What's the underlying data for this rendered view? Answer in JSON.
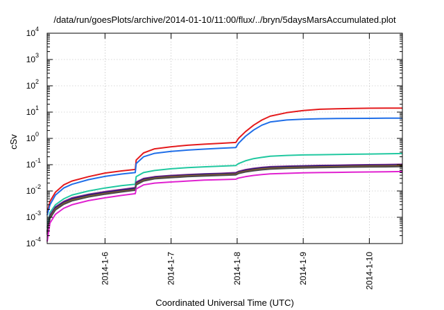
{
  "chart_data": {
    "type": "line",
    "title": "/data/run/goesPlots/archive/2014-01-10/11:00/flux/../bryn/5daysMarsAccumulated.plot",
    "xlabel": "Coordinated Universal Time (UTC)",
    "ylabel": "cSv",
    "y_scale": "log",
    "ylim_exponents": [
      -4,
      4
    ],
    "y_tick_base": "10",
    "y_tick_exponents": [
      "-4",
      "-3",
      "-2",
      "-1",
      "0",
      "1",
      "2",
      "3",
      "4"
    ],
    "xlim": [
      "2014-01-05 03:00",
      "2014-01-10 12:00"
    ],
    "x_ticks": [
      "2014-1-6",
      "2014-1-7",
      "2014-1-8",
      "2014-1-9",
      "2014-1-10"
    ],
    "grid": true,
    "legend": "none",
    "series": [
      {
        "color": "#e41a1c",
        "x": [
          "2014-01-05 03:00",
          "2014-01-05 04:00",
          "2014-01-05 06:00",
          "2014-01-05 09:00",
          "2014-01-05 12:00",
          "2014-01-05 18:00",
          "2014-01-06 00:00",
          "2014-01-06 06:00",
          "2014-01-06 11:00",
          "2014-01-06 11:20",
          "2014-01-06 14:00",
          "2014-01-06 18:00",
          "2014-01-07 00:00",
          "2014-01-07 06:00",
          "2014-01-07 12:00",
          "2014-01-07 18:00",
          "2014-01-07 23:30",
          "2014-01-08 00:30",
          "2014-01-08 03:00",
          "2014-01-08 06:00",
          "2014-01-08 09:00",
          "2014-01-08 12:00",
          "2014-01-08 18:00",
          "2014-01-09 00:00",
          "2014-01-09 06:00",
          "2014-01-09 12:00",
          "2014-01-09 18:00",
          "2014-01-10 00:00",
          "2014-01-10 06:00",
          "2014-01-10 12:00"
        ],
        "values": [
          0.0015,
          0.004,
          0.009,
          0.017,
          0.024,
          0.035,
          0.048,
          0.058,
          0.066,
          0.15,
          0.28,
          0.4,
          0.48,
          0.55,
          0.6,
          0.65,
          0.7,
          1.0,
          1.8,
          3.2,
          5.0,
          7.0,
          9.5,
          11.5,
          12.8,
          13.4,
          13.8,
          14.0,
          14.1,
          14.2
        ]
      },
      {
        "color": "#1f6ee8",
        "x": [
          "2014-01-05 03:00",
          "2014-01-05 04:00",
          "2014-01-05 06:00",
          "2014-01-05 09:00",
          "2014-01-05 12:00",
          "2014-01-05 18:00",
          "2014-01-06 00:00",
          "2014-01-06 06:00",
          "2014-01-06 11:00",
          "2014-01-06 11:20",
          "2014-01-06 14:00",
          "2014-01-06 18:00",
          "2014-01-07 00:00",
          "2014-01-07 06:00",
          "2014-01-07 12:00",
          "2014-01-07 18:00",
          "2014-01-07 23:30",
          "2014-01-08 00:30",
          "2014-01-08 03:00",
          "2014-01-08 06:00",
          "2014-01-08 09:00",
          "2014-01-08 12:00",
          "2014-01-08 18:00",
          "2014-01-09 00:00",
          "2014-01-09 06:00",
          "2014-01-09 12:00",
          "2014-01-09 18:00",
          "2014-01-10 00:00",
          "2014-01-10 06:00",
          "2014-01-10 12:00"
        ],
        "values": [
          0.0012,
          0.003,
          0.007,
          0.013,
          0.018,
          0.027,
          0.036,
          0.044,
          0.05,
          0.11,
          0.2,
          0.27,
          0.32,
          0.36,
          0.39,
          0.42,
          0.45,
          0.65,
          1.2,
          2.1,
          3.2,
          4.2,
          5.0,
          5.4,
          5.6,
          5.7,
          5.75,
          5.8,
          5.85,
          5.9
        ]
      },
      {
        "color": "#20c8a0",
        "x": [
          "2014-01-05 03:00",
          "2014-01-05 04:00",
          "2014-01-05 06:00",
          "2014-01-05 09:00",
          "2014-01-05 12:00",
          "2014-01-05 18:00",
          "2014-01-06 00:00",
          "2014-01-06 06:00",
          "2014-01-06 11:00",
          "2014-01-06 11:20",
          "2014-01-06 14:00",
          "2014-01-06 18:00",
          "2014-01-07 00:00",
          "2014-01-07 06:00",
          "2014-01-07 12:00",
          "2014-01-07 18:00",
          "2014-01-07 23:30",
          "2014-01-08 00:30",
          "2014-01-08 03:00",
          "2014-01-08 06:00",
          "2014-01-08 09:00",
          "2014-01-08 12:00",
          "2014-01-08 18:00",
          "2014-01-09 00:00",
          "2014-01-09 06:00",
          "2014-01-09 12:00",
          "2014-01-09 18:00",
          "2014-01-10 00:00",
          "2014-01-10 06:00",
          "2014-01-10 12:00"
        ],
        "values": [
          0.0004,
          0.0015,
          0.003,
          0.005,
          0.007,
          0.01,
          0.013,
          0.016,
          0.018,
          0.035,
          0.05,
          0.06,
          0.07,
          0.077,
          0.083,
          0.088,
          0.093,
          0.11,
          0.14,
          0.17,
          0.19,
          0.21,
          0.225,
          0.235,
          0.24,
          0.245,
          0.25,
          0.255,
          0.26,
          0.265
        ]
      },
      {
        "color": "#8e2c8e",
        "x": [
          "2014-01-05 03:00",
          "2014-01-05 04:00",
          "2014-01-05 06:00",
          "2014-01-05 09:00",
          "2014-01-05 12:00",
          "2014-01-05 18:00",
          "2014-01-06 00:00",
          "2014-01-06 06:00",
          "2014-01-06 11:00",
          "2014-01-06 11:20",
          "2014-01-06 14:00",
          "2014-01-06 18:00",
          "2014-01-07 00:00",
          "2014-01-07 06:00",
          "2014-01-07 12:00",
          "2014-01-07 18:00",
          "2014-01-07 23:30",
          "2014-01-08 00:30",
          "2014-01-08 03:00",
          "2014-01-08 06:00",
          "2014-01-08 09:00",
          "2014-01-08 12:00",
          "2014-01-08 18:00",
          "2014-01-09 00:00",
          "2014-01-09 06:00",
          "2014-01-09 12:00",
          "2014-01-09 18:00",
          "2014-01-10 00:00",
          "2014-01-10 06:00",
          "2014-01-10 12:00"
        ],
        "values": [
          0.0003,
          0.0012,
          0.0025,
          0.004,
          0.0055,
          0.0075,
          0.0095,
          0.0115,
          0.0135,
          0.022,
          0.03,
          0.035,
          0.039,
          0.042,
          0.045,
          0.047,
          0.05,
          0.056,
          0.065,
          0.073,
          0.079,
          0.084,
          0.088,
          0.091,
          0.094,
          0.096,
          0.098,
          0.1,
          0.102,
          0.104
        ]
      },
      {
        "color": "#1a1a7a",
        "x": [
          "2014-01-05 03:00",
          "2014-01-05 04:00",
          "2014-01-05 06:00",
          "2014-01-05 09:00",
          "2014-01-05 12:00",
          "2014-01-05 18:00",
          "2014-01-06 00:00",
          "2014-01-06 06:00",
          "2014-01-06 11:00",
          "2014-01-06 11:20",
          "2014-01-06 14:00",
          "2014-01-06 18:00",
          "2014-01-07 00:00",
          "2014-01-07 06:00",
          "2014-01-07 12:00",
          "2014-01-07 18:00",
          "2014-01-07 23:30",
          "2014-01-08 00:30",
          "2014-01-08 03:00",
          "2014-01-08 06:00",
          "2014-01-08 09:00",
          "2014-01-08 12:00",
          "2014-01-08 18:00",
          "2014-01-09 00:00",
          "2014-01-09 06:00",
          "2014-01-09 12:00",
          "2014-01-09 18:00",
          "2014-01-10 00:00",
          "2014-01-10 06:00",
          "2014-01-10 12:00"
        ],
        "values": [
          0.00028,
          0.0011,
          0.0023,
          0.0037,
          0.005,
          0.007,
          0.0088,
          0.0107,
          0.0125,
          0.02,
          0.028,
          0.033,
          0.037,
          0.04,
          0.043,
          0.045,
          0.047,
          0.053,
          0.061,
          0.069,
          0.075,
          0.08,
          0.084,
          0.087,
          0.089,
          0.091,
          0.093,
          0.095,
          0.096,
          0.098
        ]
      },
      {
        "color": "#8b5a2b",
        "x": [
          "2014-01-05 03:00",
          "2014-01-05 04:00",
          "2014-01-05 06:00",
          "2014-01-05 09:00",
          "2014-01-05 12:00",
          "2014-01-05 18:00",
          "2014-01-06 00:00",
          "2014-01-06 06:00",
          "2014-01-06 11:00",
          "2014-01-06 11:20",
          "2014-01-06 14:00",
          "2014-01-06 18:00",
          "2014-01-07 00:00",
          "2014-01-07 06:00",
          "2014-01-07 12:00",
          "2014-01-07 18:00",
          "2014-01-07 23:30",
          "2014-01-08 00:30",
          "2014-01-08 03:00",
          "2014-01-08 06:00",
          "2014-01-08 09:00",
          "2014-01-08 12:00",
          "2014-01-08 18:00",
          "2014-01-09 00:00",
          "2014-01-09 06:00",
          "2014-01-09 12:00",
          "2014-01-09 18:00",
          "2014-01-10 00:00",
          "2014-01-10 06:00",
          "2014-01-10 12:00"
        ],
        "values": [
          0.00025,
          0.001,
          0.0021,
          0.0034,
          0.0046,
          0.0064,
          0.0081,
          0.0099,
          0.0115,
          0.0185,
          0.026,
          0.031,
          0.035,
          0.038,
          0.04,
          0.042,
          0.044,
          0.05,
          0.057,
          0.064,
          0.07,
          0.074,
          0.078,
          0.081,
          0.083,
          0.085,
          0.087,
          0.089,
          0.09,
          0.092
        ]
      },
      {
        "color": "#4b4b4b",
        "x": [
          "2014-01-05 03:00",
          "2014-01-05 04:00",
          "2014-01-05 06:00",
          "2014-01-05 09:00",
          "2014-01-05 12:00",
          "2014-01-05 18:00",
          "2014-01-06 00:00",
          "2014-01-06 06:00",
          "2014-01-06 11:00",
          "2014-01-06 11:20",
          "2014-01-06 14:00",
          "2014-01-06 18:00",
          "2014-01-07 00:00",
          "2014-01-07 06:00",
          "2014-01-07 12:00",
          "2014-01-07 18:00",
          "2014-01-07 23:30",
          "2014-01-08 00:30",
          "2014-01-08 03:00",
          "2014-01-08 06:00",
          "2014-01-08 09:00",
          "2014-01-08 12:00",
          "2014-01-08 18:00",
          "2014-01-09 00:00",
          "2014-01-09 06:00",
          "2014-01-09 12:00",
          "2014-01-09 18:00",
          "2014-01-10 00:00",
          "2014-01-10 06:00",
          "2014-01-10 12:00"
        ],
        "values": [
          0.00022,
          0.0009,
          0.0019,
          0.0031,
          0.0042,
          0.0059,
          0.0075,
          0.0092,
          0.0107,
          0.017,
          0.024,
          0.029,
          0.032,
          0.035,
          0.037,
          0.039,
          0.041,
          0.046,
          0.053,
          0.059,
          0.064,
          0.068,
          0.072,
          0.075,
          0.077,
          0.079,
          0.081,
          0.082,
          0.083,
          0.085
        ]
      },
      {
        "color": "#e020d0",
        "x": [
          "2014-01-05 03:00",
          "2014-01-05 04:00",
          "2014-01-05 06:00",
          "2014-01-05 09:00",
          "2014-01-05 12:00",
          "2014-01-05 18:00",
          "2014-01-06 00:00",
          "2014-01-06 06:00",
          "2014-01-06 11:00",
          "2014-01-06 11:20",
          "2014-01-06 14:00",
          "2014-01-06 18:00",
          "2014-01-07 00:00",
          "2014-01-07 06:00",
          "2014-01-07 12:00",
          "2014-01-07 18:00",
          "2014-01-07 23:30",
          "2014-01-08 00:30",
          "2014-01-08 03:00",
          "2014-01-08 06:00",
          "2014-01-08 09:00",
          "2014-01-08 12:00",
          "2014-01-08 18:00",
          "2014-01-09 00:00",
          "2014-01-09 06:00",
          "2014-01-09 12:00",
          "2014-01-09 18:00",
          "2014-01-10 00:00",
          "2014-01-10 06:00",
          "2014-01-10 12:00"
        ],
        "values": [
          0.00012,
          0.0006,
          0.0013,
          0.0022,
          0.003,
          0.0043,
          0.0055,
          0.0068,
          0.0079,
          0.012,
          0.017,
          0.02,
          0.022,
          0.024,
          0.026,
          0.027,
          0.028,
          0.031,
          0.035,
          0.039,
          0.042,
          0.045,
          0.047,
          0.049,
          0.05,
          0.051,
          0.052,
          0.053,
          0.054,
          0.055
        ]
      }
    ]
  }
}
